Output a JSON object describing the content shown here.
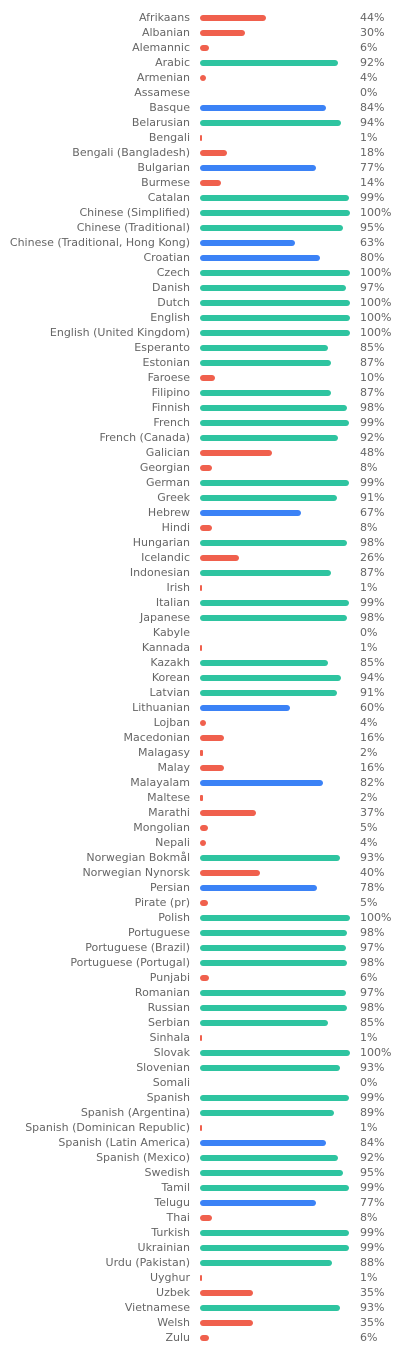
{
  "chart_data": {
    "type": "bar",
    "orientation": "horizontal",
    "value_suffix": "%",
    "xlim": [
      0,
      100
    ],
    "grid": false,
    "colors": {
      "high": "#2ec4a0",
      "medium": "#3b82f6",
      "low": "#f0604d"
    },
    "categories": [
      "Afrikaans",
      "Albanian",
      "Alemannic",
      "Arabic",
      "Armenian",
      "Assamese",
      "Basque",
      "Belarusian",
      "Bengali",
      "Bengali (Bangladesh)",
      "Bulgarian",
      "Burmese",
      "Catalan",
      "Chinese (Simplified)",
      "Chinese (Traditional)",
      "Chinese (Traditional, Hong Kong)",
      "Croatian",
      "Czech",
      "Danish",
      "Dutch",
      "English",
      "English (United Kingdom)",
      "Esperanto",
      "Estonian",
      "Faroese",
      "Filipino",
      "Finnish",
      "French",
      "French (Canada)",
      "Galician",
      "Georgian",
      "German",
      "Greek",
      "Hebrew",
      "Hindi",
      "Hungarian",
      "Icelandic",
      "Indonesian",
      "Irish",
      "Italian",
      "Japanese",
      "Kabyle",
      "Kannada",
      "Kazakh",
      "Korean",
      "Latvian",
      "Lithuanian",
      "Lojban",
      "Macedonian",
      "Malagasy",
      "Malay",
      "Malayalam",
      "Maltese",
      "Marathi",
      "Mongolian",
      "Nepali",
      "Norwegian Bokmål",
      "Norwegian Nynorsk",
      "Persian",
      "Pirate (pr)",
      "Polish",
      "Portuguese",
      "Portuguese (Brazil)",
      "Portuguese (Portugal)",
      "Punjabi",
      "Romanian",
      "Russian",
      "Serbian",
      "Sinhala",
      "Slovak",
      "Slovenian",
      "Somali",
      "Spanish",
      "Spanish (Argentina)",
      "Spanish (Dominican Republic)",
      "Spanish (Latin America)",
      "Spanish (Mexico)",
      "Swedish",
      "Tamil",
      "Telugu",
      "Thai",
      "Turkish",
      "Ukrainian",
      "Urdu (Pakistan)",
      "Uyghur",
      "Uzbek",
      "Vietnamese",
      "Welsh",
      "Zulu"
    ],
    "values": [
      44,
      30,
      6,
      92,
      4,
      0,
      84,
      94,
      1,
      18,
      77,
      14,
      99,
      100,
      95,
      63,
      80,
      100,
      97,
      100,
      100,
      100,
      85,
      87,
      10,
      87,
      98,
      99,
      92,
      48,
      8,
      99,
      91,
      67,
      8,
      98,
      26,
      87,
      1,
      99,
      98,
      0,
      1,
      85,
      94,
      91,
      60,
      4,
      16,
      2,
      16,
      82,
      2,
      37,
      5,
      4,
      93,
      40,
      78,
      5,
      100,
      98,
      97,
      98,
      6,
      97,
      98,
      85,
      1,
      100,
      93,
      0,
      99,
      89,
      1,
      84,
      92,
      95,
      99,
      77,
      8,
      99,
      99,
      88,
      1,
      35,
      93,
      35,
      6
    ],
    "value_labels": [
      "44%",
      "30%",
      "6%",
      "92%",
      "4%",
      "0%",
      "84%",
      "94%",
      "1%",
      "18%",
      "77%",
      "14%",
      "99%",
      "100%",
      "95%",
      "63%",
      "80%",
      "100%",
      "97%",
      "100%",
      "100%",
      "100%",
      "85%",
      "87%",
      "10%",
      "87%",
      "98%",
      "99%",
      "92%",
      "48%",
      "8%",
      "99%",
      "91%",
      "67%",
      "8%",
      "98%",
      "26%",
      "87%",
      "1%",
      "99%",
      "98%",
      "0%",
      "1%",
      "85%",
      "94%",
      "91%",
      "60%",
      "4%",
      "16%",
      "2%",
      "16%",
      "82%",
      "2%",
      "37%",
      "5%",
      "4%",
      "93%",
      "40%",
      "78%",
      "5%",
      "100%",
      "98%",
      "97%",
      "98%",
      "6%",
      "97%",
      "98%",
      "85%",
      "1%",
      "100%",
      "93%",
      "0%",
      "99%",
      "89%",
      "1%",
      "84%",
      "92%",
      "95%",
      "99%",
      "77%",
      "8%",
      "99%",
      "99%",
      "88%",
      "1%",
      "35%",
      "93%",
      "35%",
      "6%"
    ]
  }
}
